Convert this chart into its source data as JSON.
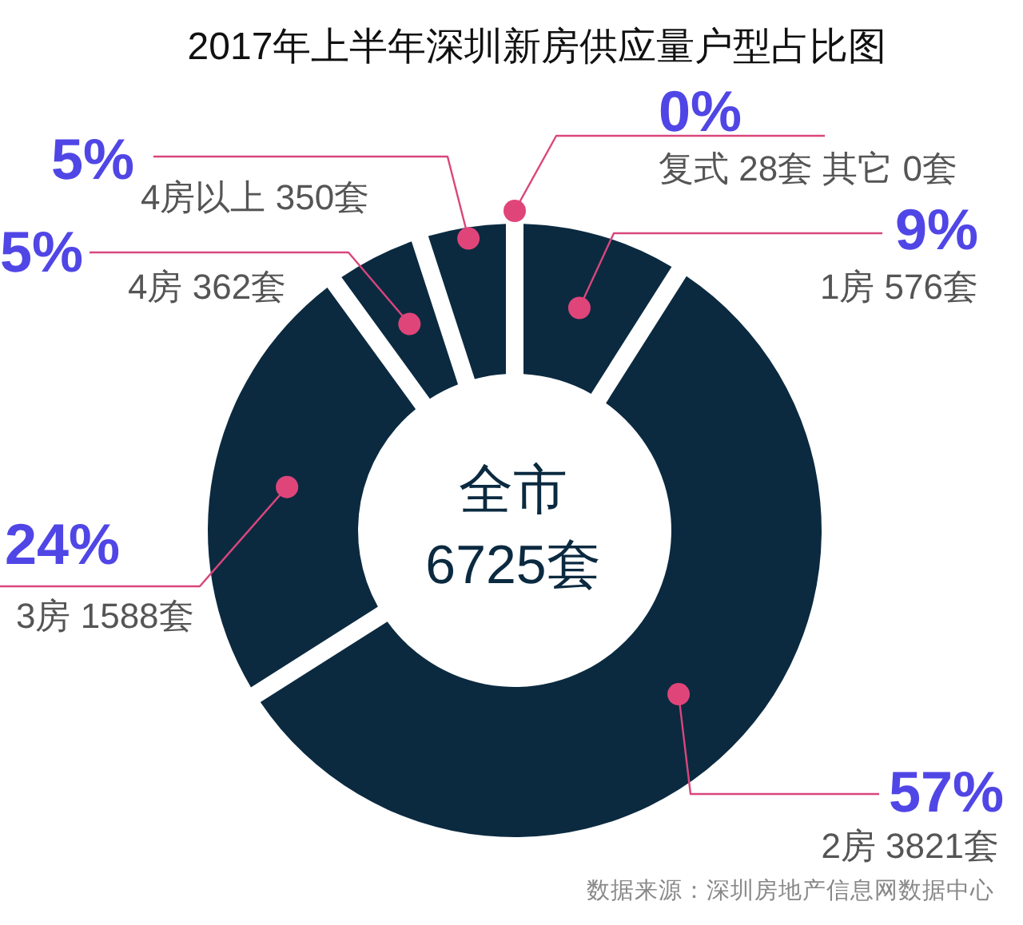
{
  "chart_data": {
    "type": "donut",
    "title": "2017年上半年深圳新房供应量户型占比图",
    "categories": [
      "1房 576套",
      "2房 3821套",
      "3房 1588套",
      "4房 362套",
      "4房以上 350套",
      "复式 28套 其它 0套"
    ],
    "values": [
      9,
      57,
      24,
      5,
      5,
      0
    ],
    "value_labels": [
      "9%",
      "57%",
      "24%",
      "5%",
      "5%",
      "0%"
    ],
    "annotations": [
      "全市\n6725套",
      "数据来源：深圳房地产信息网数据中心"
    ]
  }
}
